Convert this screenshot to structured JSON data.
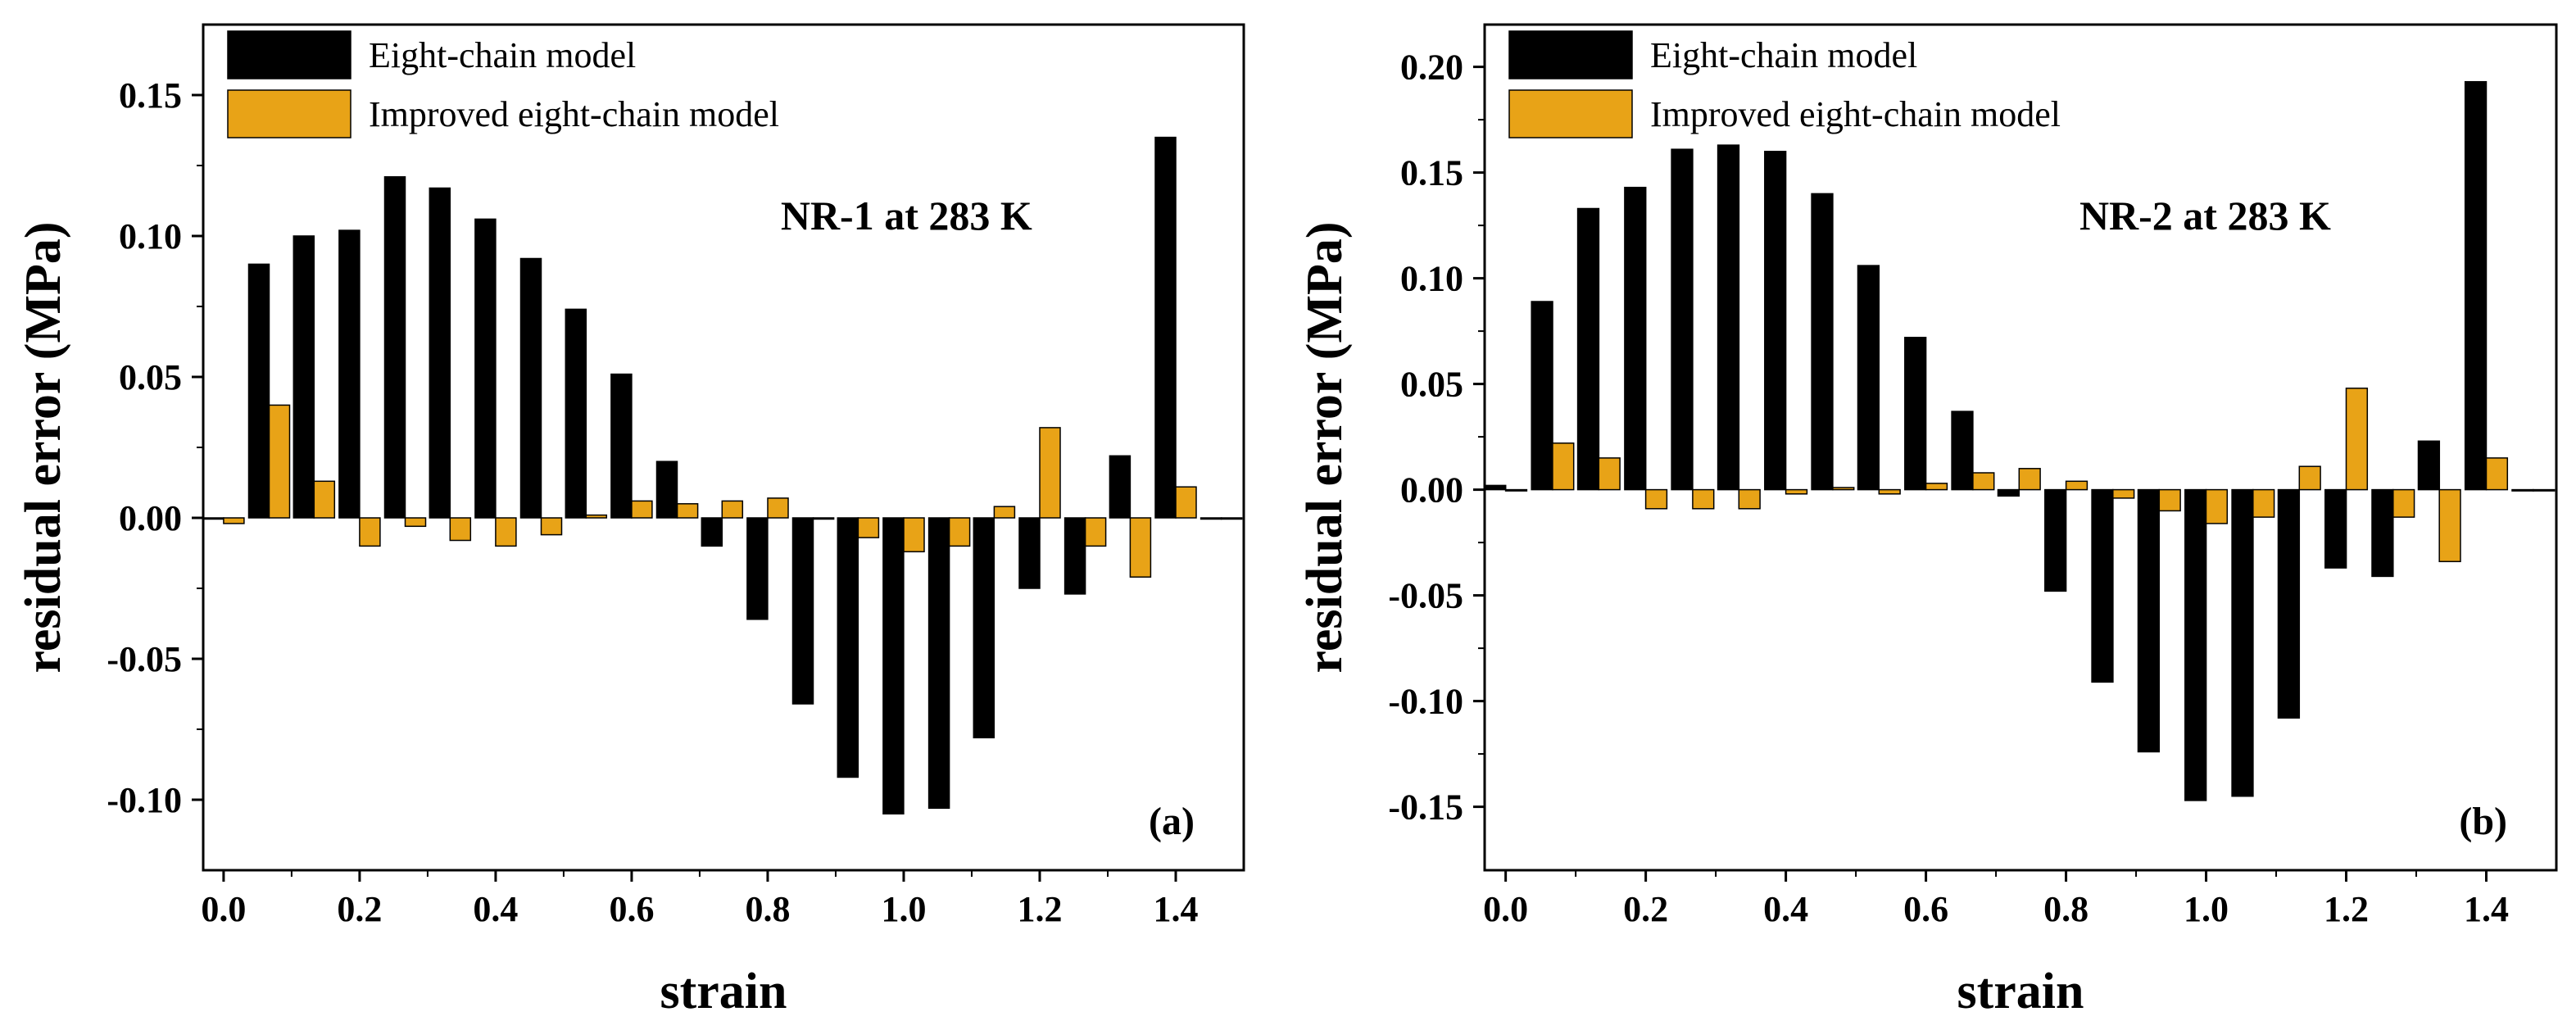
{
  "colors": {
    "series1": "#000000",
    "series2": "#E8A317",
    "axis": "#000000",
    "background": "#ffffff"
  },
  "chart_data": [
    {
      "type": "bar",
      "panel_label": "(a)",
      "annotation": "NR-1 at 283 K",
      "xlabel": "strain",
      "ylabel": "residual error (MPa)",
      "xlim": [
        -0.03,
        1.5
      ],
      "ylim": [
        -0.125,
        0.175
      ],
      "xticks": [
        "0.0",
        "0.2",
        "0.4",
        "0.6",
        "0.8",
        "1.0",
        "1.2",
        "1.4"
      ],
      "xtick_values": [
        0.0,
        0.2,
        0.4,
        0.6,
        0.8,
        1.0,
        1.2,
        1.4
      ],
      "yticks": [
        "-0.10",
        "-0.05",
        "0.00",
        "0.05",
        "0.10",
        "0.15"
      ],
      "ytick_values": [
        -0.1,
        -0.05,
        0.0,
        0.05,
        0.1,
        0.15
      ],
      "legend_position": "top-left",
      "grid": false,
      "x": [
        0.0,
        0.067,
        0.133,
        0.2,
        0.267,
        0.333,
        0.4,
        0.467,
        0.533,
        0.6,
        0.667,
        0.733,
        0.8,
        0.867,
        0.933,
        1.0,
        1.067,
        1.133,
        1.2,
        1.267,
        1.333,
        1.4,
        1.467
      ],
      "series": [
        {
          "name": "Eight-chain model",
          "values": [
            0.0,
            0.09,
            0.1,
            0.102,
            0.121,
            0.117,
            0.106,
            0.092,
            0.074,
            0.051,
            0.02,
            -0.01,
            -0.036,
            -0.066,
            -0.092,
            -0.105,
            -0.103,
            -0.078,
            -0.025,
            -0.027,
            0.022,
            0.135,
            0.0
          ]
        },
        {
          "name": "Improved eight-chain model",
          "values": [
            -0.002,
            0.04,
            0.013,
            -0.01,
            -0.003,
            -0.008,
            -0.01,
            -0.006,
            0.001,
            0.006,
            0.005,
            0.006,
            0.007,
            0.0,
            -0.007,
            -0.012,
            -0.01,
            0.004,
            0.032,
            -0.01,
            -0.021,
            0.011,
            0.0
          ]
        }
      ]
    },
    {
      "type": "bar",
      "panel_label": "(b)",
      "annotation": "NR-2 at 283 K",
      "xlabel": "strain",
      "ylabel": "residual error (MPa)",
      "xlim": [
        -0.03,
        1.5
      ],
      "ylim": [
        -0.18,
        0.22
      ],
      "xticks": [
        "0.0",
        "0.2",
        "0.4",
        "0.6",
        "0.8",
        "1.0",
        "1.2",
        "1.4"
      ],
      "xtick_values": [
        0.0,
        0.2,
        0.4,
        0.6,
        0.8,
        1.0,
        1.2,
        1.4
      ],
      "yticks": [
        "-0.15",
        "-0.10",
        "-0.05",
        "0.00",
        "0.05",
        "0.10",
        "0.15",
        "0.20"
      ],
      "ytick_values": [
        -0.15,
        -0.1,
        -0.05,
        0.0,
        0.05,
        0.1,
        0.15,
        0.2
      ],
      "legend_position": "top-left",
      "grid": false,
      "x": [
        0.0,
        0.067,
        0.133,
        0.2,
        0.267,
        0.333,
        0.4,
        0.467,
        0.533,
        0.6,
        0.667,
        0.733,
        0.8,
        0.867,
        0.933,
        1.0,
        1.067,
        1.133,
        1.2,
        1.267,
        1.333,
        1.4,
        1.467
      ],
      "series": [
        {
          "name": "Eight-chain model",
          "values": [
            0.002,
            0.089,
            0.133,
            0.143,
            0.161,
            0.163,
            0.16,
            0.14,
            0.106,
            0.072,
            0.037,
            -0.003,
            -0.048,
            -0.091,
            -0.124,
            -0.147,
            -0.145,
            -0.108,
            -0.037,
            -0.041,
            0.023,
            0.193,
            0.0
          ]
        },
        {
          "name": "Improved eight-chain model",
          "values": [
            0.0,
            0.022,
            0.015,
            -0.009,
            -0.009,
            -0.009,
            -0.002,
            0.001,
            -0.002,
            0.003,
            0.008,
            0.01,
            0.004,
            -0.004,
            -0.01,
            -0.016,
            -0.013,
            0.011,
            0.048,
            -0.013,
            -0.034,
            0.015,
            0.0
          ]
        }
      ]
    }
  ]
}
